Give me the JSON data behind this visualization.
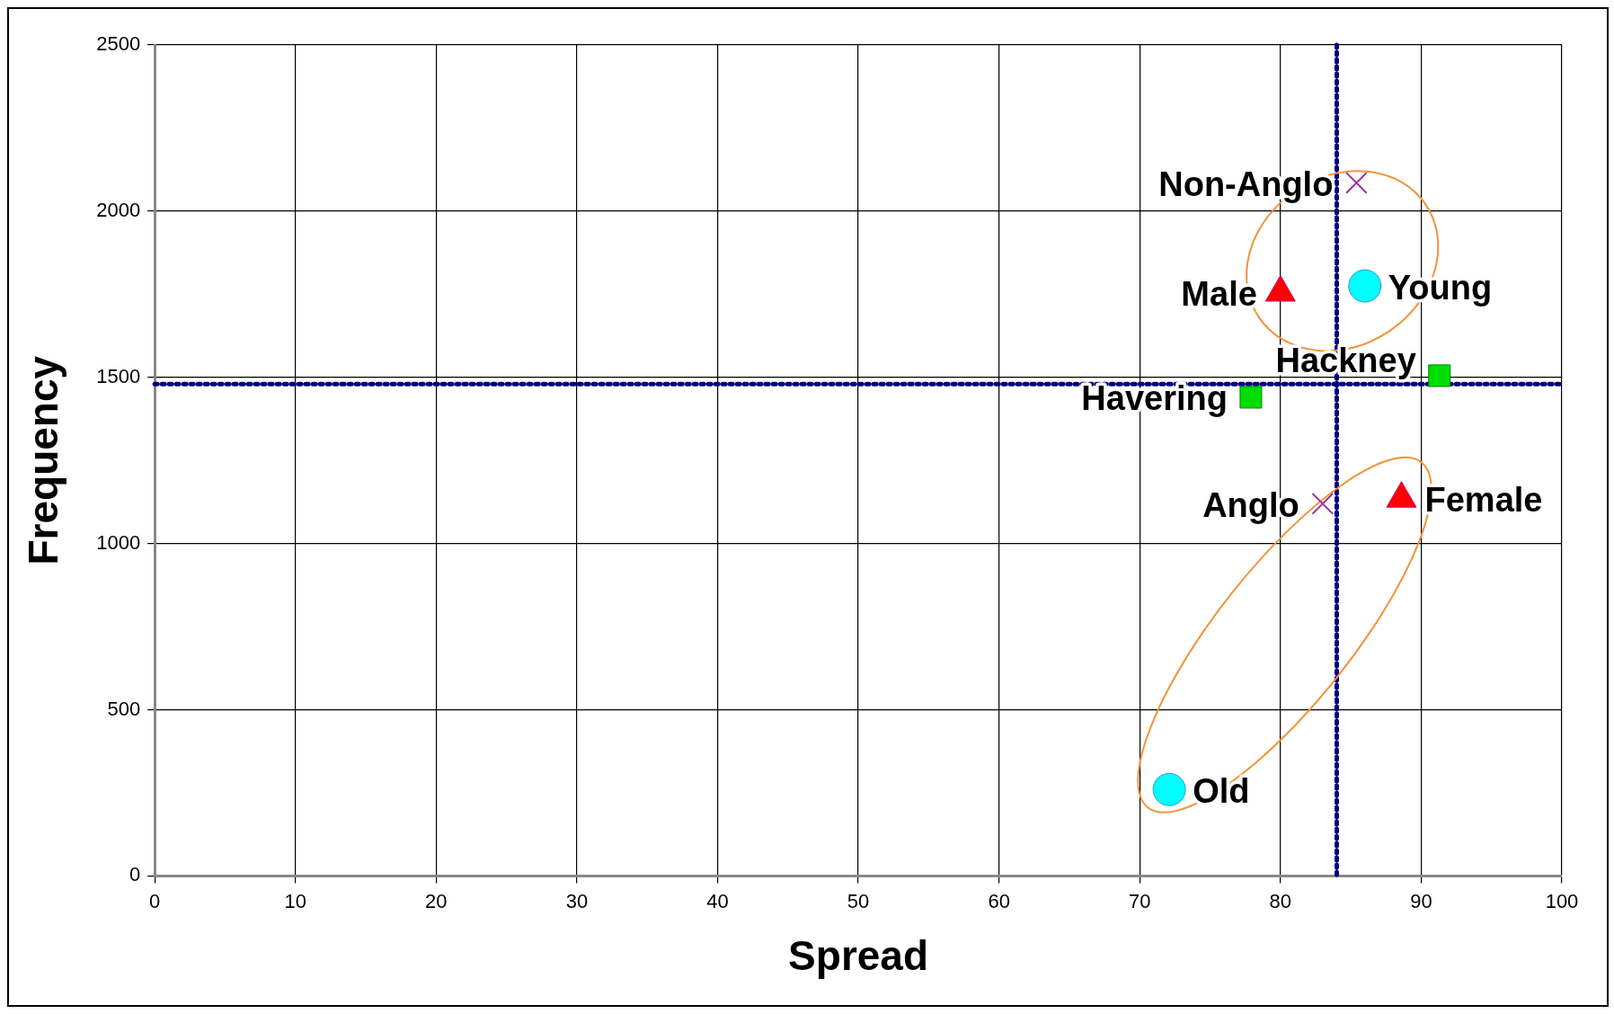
{
  "chart_data": {
    "type": "scatter",
    "xlabel": "Spread",
    "ylabel": "Frequency",
    "xlim": [
      0,
      100
    ],
    "xticks": [
      0,
      10,
      20,
      30,
      40,
      50,
      60,
      70,
      80,
      90,
      100
    ],
    "ylim": [
      0,
      2500
    ],
    "yticks": [
      0,
      500,
      1000,
      1500,
      2000,
      2500
    ],
    "grid": true,
    "legend": false,
    "series": [
      {
        "color": "#00dd00",
        "marker": "square",
        "x": [
          91.3,
          77.9
        ],
        "values": [
          1505,
          1440
        ]
      },
      {
        "color": "#ff0000",
        "marker": "triangle",
        "x": [
          80.0,
          88.6
        ],
        "values": [
          1755,
          1135
        ]
      },
      {
        "color": "#00ffff",
        "marker": "circle",
        "x": [
          86.0,
          72.1
        ],
        "values": [
          1775,
          260
        ]
      },
      {
        "color": "#993399",
        "marker": "cross",
        "x": [
          85.4,
          83.0
        ],
        "values": [
          2085,
          1120
        ]
      }
    ],
    "ref_lines": [
      {
        "axis": "x",
        "value": 84,
        "color": "#000080",
        "line_style": "dotted"
      },
      {
        "axis": "y",
        "value": 1480,
        "color": "#000080",
        "line_style": "dotted"
      }
    ],
    "annotations": [
      {
        "text": "Hackney",
        "x": 91.3,
        "y": 1505
      },
      {
        "text": "Havering",
        "x": 77.9,
        "y": 1440
      },
      {
        "text": "Male",
        "x": 80.0,
        "y": 1755
      },
      {
        "text": "Female",
        "x": 88.6,
        "y": 1135
      },
      {
        "text": "Young",
        "x": 86.0,
        "y": 1775
      },
      {
        "text": "Old",
        "x": 72.1,
        "y": 260
      },
      {
        "text": "Non-Anglo",
        "x": 85.4,
        "y": 2085
      },
      {
        "text": "Anglo",
        "x": 83.0,
        "y": 1120
      }
    ]
  }
}
